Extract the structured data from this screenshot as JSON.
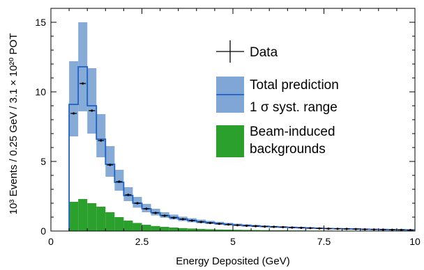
{
  "chart_data": {
    "type": "histogram",
    "xlabel": "Energy Deposited (GeV)",
    "ylabel": "10³ Events / 0.25 GeV / 3.1 × 10²⁰ POT",
    "xlim": [
      0,
      10
    ],
    "ylim": [
      0,
      16
    ],
    "x_ticks": [
      0,
      2.5,
      5,
      7.5,
      10
    ],
    "x_tick_labels": [
      "0",
      "2.5",
      "5",
      "7.5",
      "10"
    ],
    "y_ticks": [
      0,
      5,
      10,
      15
    ],
    "y_tick_labels": [
      "0",
      "5",
      "10",
      "15"
    ],
    "bin_width": 0.25,
    "bin_low_edges": [
      0.5,
      0.75,
      1.0,
      1.25,
      1.5,
      1.75,
      2.0,
      2.25,
      2.5,
      2.75,
      3.0,
      3.25,
      3.5,
      3.75,
      4.0,
      4.25,
      4.5,
      4.75,
      5.0,
      5.25,
      5.5,
      5.75,
      6.0,
      6.25,
      6.5,
      6.75,
      7.0,
      7.25,
      7.5,
      7.75,
      8.0,
      8.25,
      8.5,
      8.75,
      9.0,
      9.25,
      9.5,
      9.75
    ],
    "series": [
      {
        "name": "Data",
        "style": "points",
        "color": "#000000",
        "values": [
          8.45,
          10.6,
          8.65,
          6.5,
          4.75,
          3.55,
          2.6,
          2.0,
          1.6,
          1.3,
          1.1,
          0.95,
          0.85,
          0.75,
          0.65,
          0.58,
          0.52,
          0.47,
          0.42,
          0.38,
          0.35,
          0.32,
          0.3,
          0.28,
          0.25,
          0.23,
          0.21,
          0.19,
          0.17,
          0.16,
          0.15,
          0.14,
          0.12,
          0.11,
          0.1,
          0.09,
          0.08,
          0.07
        ]
      },
      {
        "name": "Total prediction",
        "style": "step",
        "color": "#1f5fc8",
        "values": [
          9.1,
          11.8,
          9.0,
          6.6,
          4.8,
          3.5,
          2.55,
          2.0,
          1.6,
          1.32,
          1.12,
          0.98,
          0.86,
          0.76,
          0.67,
          0.6,
          0.54,
          0.48,
          0.43,
          0.39,
          0.36,
          0.33,
          0.3,
          0.28,
          0.26,
          0.24,
          0.22,
          0.2,
          0.18,
          0.17,
          0.16,
          0.15,
          0.13,
          0.12,
          0.11,
          0.1,
          0.09,
          0.08
        ]
      },
      {
        "name": "1 σ syst. range",
        "style": "band",
        "color": "#7fa6d4",
        "lower": [
          6.8,
          8.6,
          7.0,
          5.3,
          3.9,
          2.9,
          2.15,
          1.68,
          1.35,
          1.12,
          0.95,
          0.83,
          0.72,
          0.63,
          0.56,
          0.5,
          0.45,
          0.4,
          0.36,
          0.32,
          0.29,
          0.27,
          0.25,
          0.23,
          0.21,
          0.19,
          0.17,
          0.15,
          0.14,
          0.13,
          0.12,
          0.11,
          0.1,
          0.09,
          0.08,
          0.07,
          0.06,
          0.05
        ],
        "upper": [
          12.2,
          15.0,
          11.7,
          8.4,
          6.1,
          4.4,
          3.15,
          2.45,
          1.95,
          1.6,
          1.35,
          1.18,
          1.03,
          0.92,
          0.82,
          0.73,
          0.66,
          0.59,
          0.53,
          0.48,
          0.44,
          0.4,
          0.37,
          0.34,
          0.31,
          0.29,
          0.27,
          0.25,
          0.23,
          0.21,
          0.2,
          0.18,
          0.16,
          0.15,
          0.14,
          0.13,
          0.12,
          0.1
        ]
      },
      {
        "name": "Beam-induced backgrounds",
        "style": "filled",
        "color": "#2ca02c",
        "values": [
          2.1,
          2.3,
          2.0,
          1.75,
          1.35,
          1.0,
          0.75,
          0.58,
          0.45,
          0.36,
          0.3,
          0.25,
          0.21,
          0.18,
          0.15,
          0.13,
          0.11,
          0.1,
          0.09,
          0.08,
          0.07,
          0.06,
          0.05,
          0.05,
          0.04,
          0.04,
          0.03,
          0.03,
          0.03,
          0.02,
          0.02,
          0.02,
          0.02,
          0.01,
          0.01,
          0.01,
          0.01,
          0.01
        ]
      }
    ],
    "legend": {
      "placement": "top-right",
      "entries": [
        {
          "label": "Data",
          "kind": "data"
        },
        {
          "label": "Total prediction",
          "kind": "band-line"
        },
        {
          "label": "1 σ syst. range",
          "kind": "band-cont"
        },
        {
          "label": "Beam-induced",
          "kind": "fill"
        },
        {
          "label": "backgrounds",
          "kind": "fill-cont"
        }
      ]
    },
    "grid": false
  }
}
